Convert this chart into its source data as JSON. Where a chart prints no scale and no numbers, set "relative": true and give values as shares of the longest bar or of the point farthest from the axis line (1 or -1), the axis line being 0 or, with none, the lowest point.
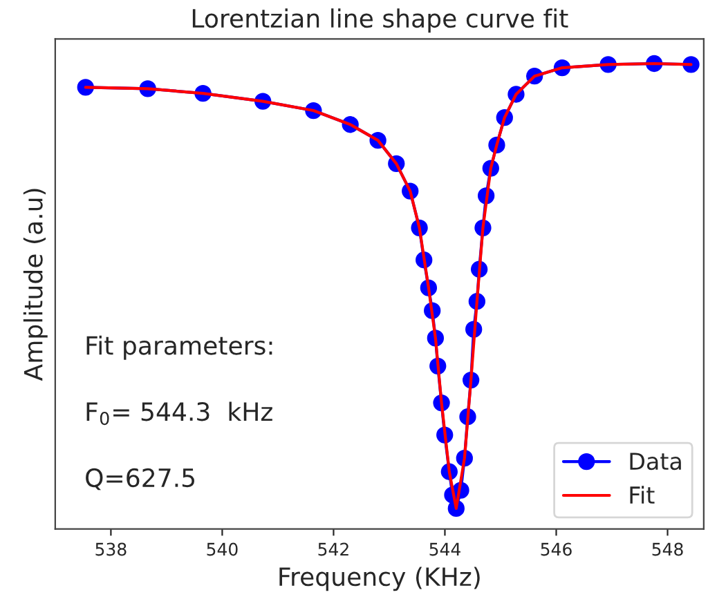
{
  "chart_data": {
    "type": "line",
    "title": "Lorentzian line shape curve fit",
    "xlabel": "Frequency (KHz)",
    "ylabel": "Amplitude (a.u)",
    "relative": true,
    "tick_labels": "x",
    "xlim": [
      537.0,
      548.65
    ],
    "xticks": [
      538,
      540,
      542,
      544,
      546,
      548
    ],
    "grid": false,
    "legend": "bottom right",
    "annotations": [
      "Fit parameters:",
      "F$_{0}$= 544.3  kHz",
      "Q=627.5"
    ],
    "series": [
      {
        "name": "Data",
        "color": "#0000ff",
        "marker": "circle",
        "line_style": "solid",
        "x": [
          537.545,
          538.662,
          539.654,
          540.73,
          541.639,
          542.301,
          542.797,
          543.128,
          543.376,
          543.542,
          543.624,
          543.707,
          543.773,
          543.831,
          543.873,
          543.939,
          543.997,
          544.079,
          544.137,
          544.203,
          544.286,
          544.352,
          544.41,
          544.468,
          544.518,
          544.576,
          544.617,
          544.683,
          544.741,
          544.824,
          544.931,
          545.072,
          545.279,
          545.61,
          546.106,
          546.933,
          547.76,
          548.422
        ],
        "values": [
          0.949,
          0.946,
          0.936,
          0.919,
          0.899,
          0.869,
          0.835,
          0.785,
          0.726,
          0.647,
          0.578,
          0.518,
          0.469,
          0.41,
          0.35,
          0.271,
          0.202,
          0.123,
          0.073,
          0.044,
          0.083,
          0.152,
          0.241,
          0.32,
          0.429,
          0.489,
          0.558,
          0.647,
          0.716,
          0.775,
          0.825,
          0.884,
          0.934,
          0.973,
          0.991,
          0.998,
          1.0,
          0.998
        ]
      },
      {
        "name": "Fit",
        "color": "#ff0000",
        "marker": "none",
        "line_style": "solid",
        "x": [
          537.545,
          538.662,
          539.654,
          540.73,
          541.639,
          542.301,
          542.797,
          543.128,
          543.376,
          543.542,
          543.707,
          543.831,
          543.939,
          544.079,
          544.203,
          544.352,
          544.468,
          544.576,
          544.683,
          544.824,
          544.931,
          545.072,
          545.279,
          545.61,
          546.106,
          546.933,
          547.76,
          548.422
        ],
        "values": [
          0.949,
          0.946,
          0.936,
          0.919,
          0.899,
          0.869,
          0.835,
          0.785,
          0.726,
          0.647,
          0.518,
          0.41,
          0.271,
          0.123,
          0.044,
          0.152,
          0.32,
          0.489,
          0.647,
          0.775,
          0.825,
          0.884,
          0.934,
          0.973,
          0.991,
          0.998,
          1.0,
          0.998
        ]
      }
    ]
  }
}
